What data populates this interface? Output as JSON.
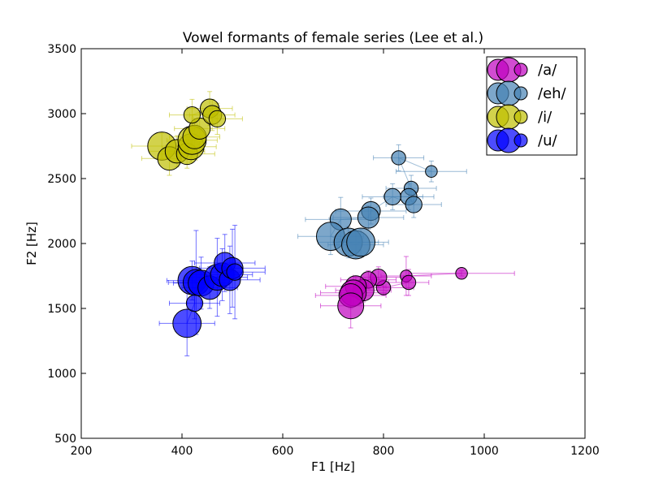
{
  "chart_data": {
    "type": "scatter",
    "title": "Vowel formants of female series (Lee et al.)",
    "xlabel": "F1 [Hz]",
    "ylabel": "F2 [Hz]",
    "xlim": [
      200,
      1200
    ],
    "ylim": [
      500,
      3500
    ],
    "xticks": [
      200,
      400,
      600,
      800,
      1000,
      1200
    ],
    "yticks": [
      500,
      1000,
      1500,
      2000,
      2500,
      3000,
      3500
    ],
    "grid": false,
    "legend_position": "top-right",
    "series": [
      {
        "name": "/a/",
        "color": "#BF00BF",
        "points": [
          {
            "x": 955,
            "y": 1770,
            "r": 5,
            "xerr": 105,
            "yerr": 20
          },
          {
            "x": 845,
            "y": 1750,
            "r": 5,
            "xerr": 50,
            "yerr": 150
          },
          {
            "x": 850,
            "y": 1700,
            "r": 6,
            "xerr": 40,
            "yerr": 100
          },
          {
            "x": 800,
            "y": 1660,
            "r": 6,
            "xerr": 60,
            "yerr": 60
          },
          {
            "x": 790,
            "y": 1740,
            "r": 7,
            "xerr": 50,
            "yerr": 80
          },
          {
            "x": 770,
            "y": 1720,
            "r": 7,
            "xerr": 55,
            "yerr": 70
          },
          {
            "x": 760,
            "y": 1640,
            "r": 9,
            "xerr": 55,
            "yerr": 90
          },
          {
            "x": 745,
            "y": 1670,
            "r": 9,
            "xerr": 60,
            "yerr": 80
          },
          {
            "x": 740,
            "y": 1620,
            "r": 11,
            "xerr": 65,
            "yerr": 90
          },
          {
            "x": 735,
            "y": 1600,
            "r": 10,
            "xerr": 70,
            "yerr": 100
          },
          {
            "x": 735,
            "y": 1520,
            "r": 11,
            "xerr": 60,
            "yerr": 170
          }
        ]
      },
      {
        "name": "/eh/",
        "color": "#4682B4",
        "points": [
          {
            "x": 895,
            "y": 2555,
            "r": 5,
            "xerr": 70,
            "yerr": 80
          },
          {
            "x": 830,
            "y": 2660,
            "r": 6,
            "xerr": 50,
            "yerr": 100
          },
          {
            "x": 855,
            "y": 2425,
            "r": 6,
            "xerr": 50,
            "yerr": 100
          },
          {
            "x": 850,
            "y": 2360,
            "r": 7,
            "xerr": 50,
            "yerr": 100
          },
          {
            "x": 860,
            "y": 2300,
            "r": 7,
            "xerr": 55,
            "yerr": 100
          },
          {
            "x": 818,
            "y": 2360,
            "r": 7,
            "xerr": 60,
            "yerr": 100
          },
          {
            "x": 775,
            "y": 2250,
            "r": 8,
            "xerr": 70,
            "yerr": 100
          },
          {
            "x": 770,
            "y": 2200,
            "r": 9,
            "xerr": 70,
            "yerr": 90
          },
          {
            "x": 715,
            "y": 2185,
            "r": 9,
            "xerr": 70,
            "yerr": 170
          },
          {
            "x": 695,
            "y": 2055,
            "r": 12,
            "xerr": 65,
            "yerr": 140
          },
          {
            "x": 730,
            "y": 2010,
            "r": 12,
            "xerr": 60,
            "yerr": 120
          },
          {
            "x": 745,
            "y": 1990,
            "r": 12,
            "xerr": 55,
            "yerr": 100
          },
          {
            "x": 755,
            "y": 2010,
            "r": 12,
            "xerr": 55,
            "yerr": 100
          }
        ]
      },
      {
        "name": "/i/",
        "color": "#BFBF00",
        "points": [
          {
            "x": 360,
            "y": 2750,
            "r": 12,
            "xerr": 60,
            "yerr": 100
          },
          {
            "x": 375,
            "y": 2655,
            "r": 10,
            "xerr": 55,
            "yerr": 130
          },
          {
            "x": 390,
            "y": 2710,
            "r": 10,
            "xerr": 55,
            "yerr": 120
          },
          {
            "x": 410,
            "y": 2690,
            "r": 9,
            "xerr": 55,
            "yerr": 110
          },
          {
            "x": 418,
            "y": 2745,
            "r": 11,
            "xerr": 50,
            "yerr": 120
          },
          {
            "x": 420,
            "y": 2795,
            "r": 12,
            "xerr": 50,
            "yerr": 130
          },
          {
            "x": 425,
            "y": 2820,
            "r": 10,
            "xerr": 50,
            "yerr": 120
          },
          {
            "x": 435,
            "y": 2885,
            "r": 9,
            "xerr": 50,
            "yerr": 120
          },
          {
            "x": 420,
            "y": 2990,
            "r": 7,
            "xerr": 45,
            "yerr": 120
          },
          {
            "x": 455,
            "y": 3040,
            "r": 8,
            "xerr": 45,
            "yerr": 130
          },
          {
            "x": 460,
            "y": 2990,
            "r": 8,
            "xerr": 45,
            "yerr": 120
          },
          {
            "x": 470,
            "y": 2960,
            "r": 7,
            "xerr": 50,
            "yerr": 120
          }
        ]
      },
      {
        "name": "/u/",
        "color": "#0000FF",
        "points": [
          {
            "x": 410,
            "y": 1385,
            "r": 12,
            "xerr": 55,
            "yerr": 250
          },
          {
            "x": 425,
            "y": 1540,
            "r": 7,
            "xerr": 50,
            "yerr": 120
          },
          {
            "x": 420,
            "y": 1715,
            "r": 12,
            "xerr": 50,
            "yerr": 150
          },
          {
            "x": 428,
            "y": 1700,
            "r": 11,
            "xerr": 55,
            "yerr": 400
          },
          {
            "x": 438,
            "y": 1695,
            "r": 11,
            "xerr": 55,
            "yerr": 200
          },
          {
            "x": 455,
            "y": 1660,
            "r": 10,
            "xerr": 55,
            "yerr": 160
          },
          {
            "x": 470,
            "y": 1740,
            "r": 11,
            "xerr": 60,
            "yerr": 300
          },
          {
            "x": 480,
            "y": 1760,
            "r": 10,
            "xerr": 60,
            "yerr": 200
          },
          {
            "x": 485,
            "y": 1850,
            "r": 9,
            "xerr": 60,
            "yerr": 220
          },
          {
            "x": 495,
            "y": 1720,
            "r": 9,
            "xerr": 60,
            "yerr": 260
          },
          {
            "x": 500,
            "y": 1810,
            "r": 9,
            "xerr": 65,
            "yerr": 300
          },
          {
            "x": 505,
            "y": 1780,
            "r": 7,
            "xerr": 60,
            "yerr": 360
          }
        ]
      }
    ]
  }
}
